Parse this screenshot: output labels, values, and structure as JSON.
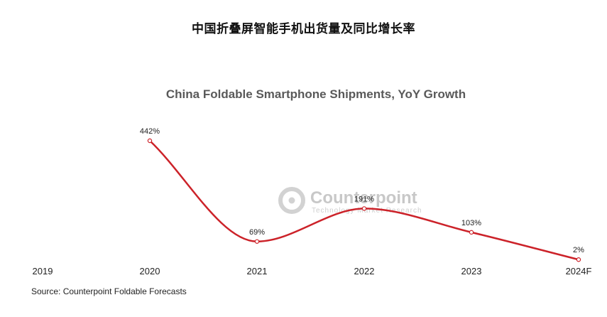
{
  "header": {
    "title_cn": "中国折叠屏智能手机出货量及同比增长率"
  },
  "watermark": {
    "name": "Counterpoint",
    "tagline": "Technology Market Research"
  },
  "source": "Source: Counterpoint Foldable Forecasts",
  "colors": {
    "line": "#cc2229",
    "marker_fill": "#ffffff",
    "title": "#595959"
  },
  "chart_data": {
    "type": "line",
    "title": "China Foldable Smartphone Shipments, YoY Growth",
    "xlabel": "",
    "ylabel": "",
    "categories": [
      "2019",
      "2020",
      "2021",
      "2022",
      "2023",
      "2024F"
    ],
    "series": [
      {
        "values": [
          null,
          442,
          69,
          191,
          103,
          2
        ],
        "labels": [
          "",
          "442%",
          "69%",
          "191%",
          "103%",
          "2%"
        ]
      }
    ],
    "y_unit": "%",
    "ylim": [
      0,
      442
    ],
    "smooth": true,
    "grid": false,
    "legend": "none"
  }
}
